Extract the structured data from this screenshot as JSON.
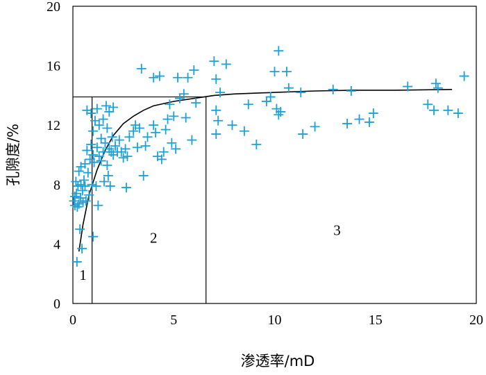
{
  "chart_data": {
    "type": "scatter",
    "title": "",
    "xlabel": "渗透率/mD",
    "ylabel": "孔隙度/%",
    "xlim": [
      0,
      20
    ],
    "ylim": [
      0,
      20
    ],
    "x_ticks": [
      "0",
      "5",
      "10",
      "15",
      "20"
    ],
    "y_ticks": [
      "0",
      "4",
      "8",
      "12",
      "16",
      "20"
    ],
    "grid": false,
    "marker_color": "#1ba1d8",
    "marker": "plus",
    "points": [
      [
        0.05,
        6.9
      ],
      [
        0.1,
        6.6
      ],
      [
        0.1,
        7.2
      ],
      [
        0.15,
        8.2
      ],
      [
        0.18,
        7.4
      ],
      [
        0.2,
        2.8
      ],
      [
        0.22,
        6.5
      ],
      [
        0.25,
        7.9
      ],
      [
        0.3,
        8.9
      ],
      [
        0.3,
        6.7
      ],
      [
        0.35,
        5.0
      ],
      [
        0.38,
        7.1
      ],
      [
        0.4,
        9.2
      ],
      [
        0.4,
        8.0
      ],
      [
        0.45,
        3.7
      ],
      [
        0.48,
        7.6
      ],
      [
        0.5,
        6.8
      ],
      [
        0.55,
        8.3
      ],
      [
        0.6,
        9.4
      ],
      [
        0.6,
        7.9
      ],
      [
        0.65,
        6.9
      ],
      [
        0.7,
        10.3
      ],
      [
        0.7,
        13.0
      ],
      [
        0.75,
        8.8
      ],
      [
        0.8,
        7.3
      ],
      [
        0.85,
        9.7
      ],
      [
        0.9,
        10.7
      ],
      [
        0.9,
        12.8
      ],
      [
        0.95,
        8.0
      ],
      [
        1.0,
        4.5
      ],
      [
        1.0,
        10.0
      ],
      [
        1.0,
        11.6
      ],
      [
        1.05,
        9.5
      ],
      [
        1.1,
        12.3
      ],
      [
        1.15,
        7.9
      ],
      [
        1.2,
        10.5
      ],
      [
        1.2,
        13.1
      ],
      [
        1.25,
        6.6
      ],
      [
        1.3,
        9.9
      ],
      [
        1.3,
        12.0
      ],
      [
        1.4,
        9.6
      ],
      [
        1.4,
        11.1
      ],
      [
        1.5,
        10.2
      ],
      [
        1.5,
        12.4
      ],
      [
        1.55,
        8.2
      ],
      [
        1.6,
        10.8
      ],
      [
        1.65,
        13.3
      ],
      [
        1.7,
        9.3
      ],
      [
        1.7,
        11.8
      ],
      [
        1.75,
        8.6
      ],
      [
        1.8,
        10.4
      ],
      [
        1.8,
        12.9
      ],
      [
        1.85,
        7.9
      ],
      [
        1.9,
        10.2
      ],
      [
        1.95,
        11.2
      ],
      [
        2.0,
        13.2
      ],
      [
        2.0,
        10.0
      ],
      [
        2.1,
        10.6
      ],
      [
        2.2,
        10.2
      ],
      [
        2.3,
        11.0
      ],
      [
        2.4,
        10.2
      ],
      [
        2.5,
        9.8
      ],
      [
        2.6,
        10.4
      ],
      [
        2.65,
        7.8
      ],
      [
        2.7,
        9.9
      ],
      [
        2.8,
        11.2
      ],
      [
        3.0,
        11.6
      ],
      [
        3.1,
        12.0
      ],
      [
        3.2,
        10.5
      ],
      [
        3.3,
        11.8
      ],
      [
        3.4,
        15.8
      ],
      [
        3.5,
        8.6
      ],
      [
        3.6,
        10.6
      ],
      [
        3.7,
        11.2
      ],
      [
        4.0,
        15.2
      ],
      [
        4.0,
        12.0
      ],
      [
        4.1,
        11.5
      ],
      [
        4.2,
        9.9
      ],
      [
        4.3,
        15.3
      ],
      [
        4.4,
        9.7
      ],
      [
        4.5,
        10.2
      ],
      [
        4.6,
        11.7
      ],
      [
        4.7,
        12.4
      ],
      [
        4.8,
        13.4
      ],
      [
        4.9,
        10.8
      ],
      [
        5.0,
        12.6
      ],
      [
        5.1,
        10.4
      ],
      [
        5.2,
        15.2
      ],
      [
        5.3,
        13.8
      ],
      [
        5.5,
        14.1
      ],
      [
        5.6,
        12.5
      ],
      [
        5.7,
        15.2
      ],
      [
        5.9,
        11.0
      ],
      [
        6.0,
        15.7
      ],
      [
        6.1,
        13.5
      ],
      [
        7.0,
        16.3
      ],
      [
        7.1,
        15.1
      ],
      [
        7.1,
        11.4
      ],
      [
        7.1,
        13.0
      ],
      [
        7.2,
        12.3
      ],
      [
        7.3,
        14.2
      ],
      [
        7.6,
        16.1
      ],
      [
        7.9,
        12.0
      ],
      [
        8.5,
        11.6
      ],
      [
        8.7,
        13.4
      ],
      [
        9.1,
        10.7
      ],
      [
        9.6,
        13.6
      ],
      [
        9.8,
        13.9
      ],
      [
        10.0,
        15.6
      ],
      [
        10.1,
        13.1
      ],
      [
        10.2,
        12.7
      ],
      [
        10.2,
        17.0
      ],
      [
        10.3,
        12.9
      ],
      [
        10.6,
        15.6
      ],
      [
        10.7,
        14.5
      ],
      [
        11.3,
        14.2
      ],
      [
        11.4,
        11.4
      ],
      [
        12.0,
        11.9
      ],
      [
        12.9,
        14.4
      ],
      [
        13.6,
        12.1
      ],
      [
        13.8,
        14.3
      ],
      [
        14.2,
        12.4
      ],
      [
        14.7,
        12.2
      ],
      [
        14.9,
        12.8
      ],
      [
        16.6,
        14.6
      ],
      [
        17.6,
        13.4
      ],
      [
        17.9,
        13.0
      ],
      [
        18.0,
        14.8
      ],
      [
        18.1,
        14.5
      ],
      [
        18.6,
        13.0
      ],
      [
        19.1,
        12.8
      ],
      [
        19.4,
        15.3
      ]
    ],
    "trend_curve": [
      [
        0.3,
        3.5
      ],
      [
        0.5,
        5.3
      ],
      [
        0.8,
        7.3
      ],
      [
        1.2,
        9.0
      ],
      [
        1.6,
        10.3
      ],
      [
        2.0,
        11.3
      ],
      [
        2.5,
        12.1
      ],
      [
        3.0,
        12.6
      ],
      [
        3.5,
        13.0
      ],
      [
        4.0,
        13.3
      ],
      [
        5.0,
        13.6
      ],
      [
        6.0,
        13.8
      ],
      [
        7.0,
        14.0
      ],
      [
        8.0,
        14.1
      ],
      [
        10.0,
        14.2
      ],
      [
        12.0,
        14.3
      ],
      [
        14.0,
        14.35
      ],
      [
        16.0,
        14.35
      ],
      [
        18.8,
        14.4
      ]
    ],
    "reference_lines": {
      "horizontal_y": 13.9,
      "horizontal_x_end": 6.6,
      "vertical_1_x": 0.95,
      "vertical_2_x": 6.6
    },
    "region_labels": [
      {
        "text": "1",
        "x": 0.5,
        "y": 1.6
      },
      {
        "text": "2",
        "x": 4.0,
        "y": 4.1
      },
      {
        "text": "3",
        "x": 13.1,
        "y": 4.6
      }
    ]
  }
}
